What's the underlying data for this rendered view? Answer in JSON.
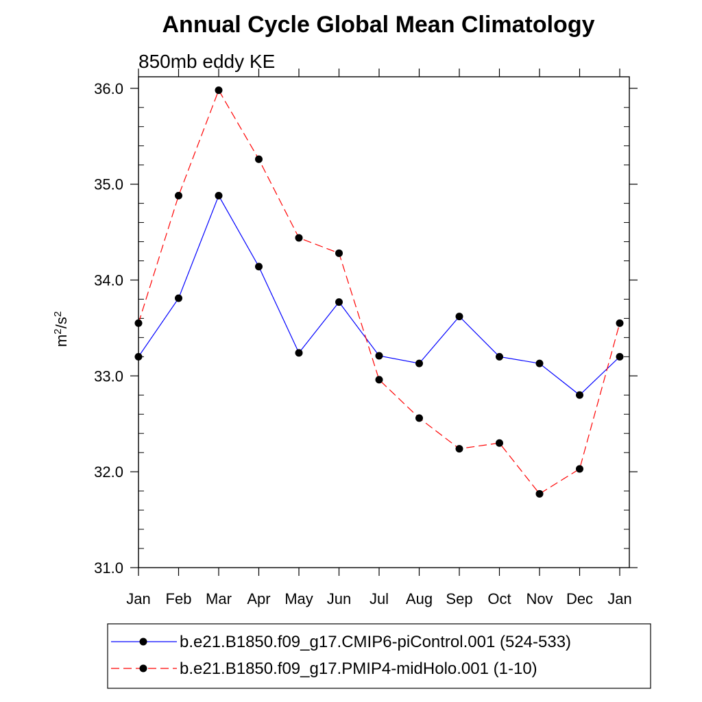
{
  "chart_data": {
    "type": "line",
    "title": "Annual Cycle Global Mean Climatology",
    "subtitle": "850mb eddy KE",
    "ylabel": {
      "base": "m",
      "sup1": "2",
      "mid": "/s",
      "sup2": "2"
    },
    "xlabel": "",
    "categories": [
      "Jan",
      "Feb",
      "Mar",
      "Apr",
      "May",
      "Jun",
      "Jul",
      "Aug",
      "Sep",
      "Oct",
      "Nov",
      "Dec",
      "Jan"
    ],
    "ylim": [
      31.0,
      36.12
    ],
    "yticks": [
      31.0,
      32.0,
      33.0,
      34.0,
      35.0,
      36.0
    ],
    "ytick_labels": [
      "31.0",
      "32.0",
      "33.0",
      "34.0",
      "35.0",
      "36.0"
    ],
    "series": [
      {
        "name": "b.e21.B1850.f09_g17.CMIP6-piControl.001 (524-533)",
        "color": "#0000ff",
        "dash": "solid",
        "values": [
          33.2,
          33.81,
          34.88,
          34.14,
          33.24,
          33.77,
          33.21,
          33.13,
          33.62,
          33.2,
          33.13,
          32.8,
          33.2
        ]
      },
      {
        "name": "b.e21.B1850.f09_g17.PMIP4-midHolo.001 (1-10)",
        "color": "#ff0000",
        "dash": "dashed",
        "values": [
          33.55,
          34.88,
          35.98,
          35.26,
          34.44,
          34.28,
          32.96,
          32.56,
          32.24,
          32.3,
          31.77,
          32.03,
          33.55
        ]
      }
    ],
    "legend_position": "bottom"
  }
}
